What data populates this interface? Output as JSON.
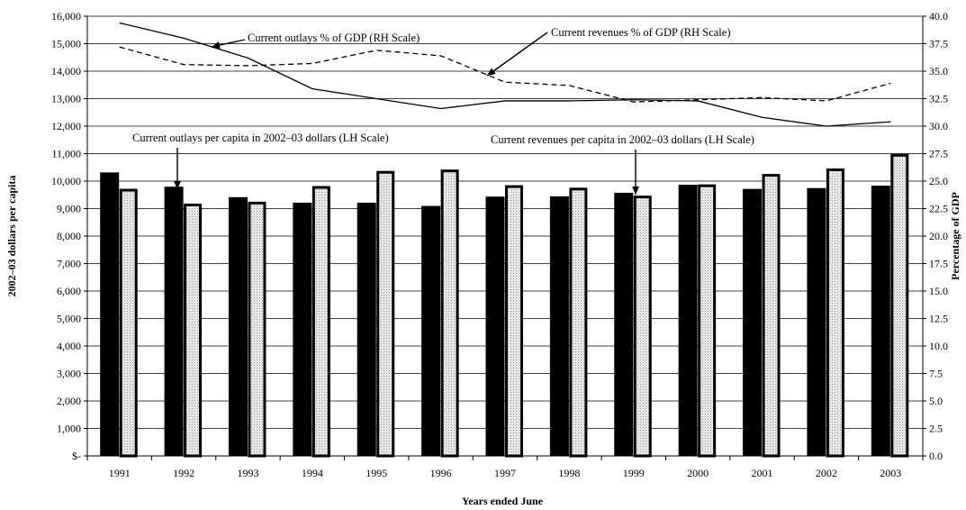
{
  "chart_data": {
    "type": "bar",
    "xlabel": "Years ended June",
    "ylabel_left": "2002–03 dollars per capita",
    "ylabel_right": "Percentage of GDP",
    "categories": [
      "1991",
      "1992",
      "1993",
      "1994",
      "1995",
      "1996",
      "1997",
      "1998",
      "1999",
      "2000",
      "2001",
      "2002",
      "2003"
    ],
    "left_axis": {
      "ylim": [
        0,
        16000
      ],
      "ticks": [
        "$-",
        "1,000",
        "2,000",
        "3,000",
        "4,000",
        "5,000",
        "6,000",
        "7,000",
        "8,000",
        "9,000",
        "10,000",
        "11,000",
        "12,000",
        "13,000",
        "14,000",
        "15,000",
        "16,000"
      ]
    },
    "right_axis": {
      "ylim": [
        0,
        40
      ],
      "ticks": [
        "0.0",
        "2.5",
        "5.0",
        "7.5",
        "10.0",
        "12.5",
        "15.0",
        "17.5",
        "20.0",
        "22.5",
        "25.0",
        "27.5",
        "30.0",
        "32.5",
        "35.0",
        "37.5",
        "40.0"
      ]
    },
    "grid": "horizontal",
    "bar_series": [
      {
        "axis": "left",
        "color": "#000000",
        "values": [
          10300,
          9780,
          9400,
          9200,
          9200,
          9080,
          9420,
          9430,
          9560,
          9850,
          9700,
          9730,
          9820
        ]
      },
      {
        "axis": "left",
        "color": "#d9d9d9",
        "values": [
          9720,
          9180,
          9250,
          9820,
          10370,
          10420,
          9850,
          9760,
          9470,
          9880,
          10260,
          10460,
          10990
        ]
      }
    ],
    "line_series": [
      {
        "axis": "right",
        "style": "solid",
        "values": [
          39.4,
          38.0,
          36.2,
          33.4,
          32.5,
          31.6,
          32.3,
          32.3,
          32.4,
          32.3,
          30.8,
          30.0,
          30.4
        ]
      },
      {
        "axis": "right",
        "style": "dashed",
        "values": [
          37.2,
          35.6,
          35.5,
          35.7,
          36.9,
          36.4,
          34.0,
          33.7,
          32.2,
          32.4,
          32.6,
          32.3,
          33.9
        ]
      }
    ],
    "annotations": [
      {
        "text": "Current outlays % of GDP (RH Scale)",
        "series": "line-0"
      },
      {
        "text": "Current revenues % of GDP (RH Scale)",
        "series": "line-1"
      },
      {
        "text": "Current outlays per capita in 2002–03 dollars (LH Scale)",
        "series": "bar-0"
      },
      {
        "text": "Current revenues per capita in 2002–03 dollars  (LH Scale)",
        "series": "bar-1"
      }
    ]
  }
}
